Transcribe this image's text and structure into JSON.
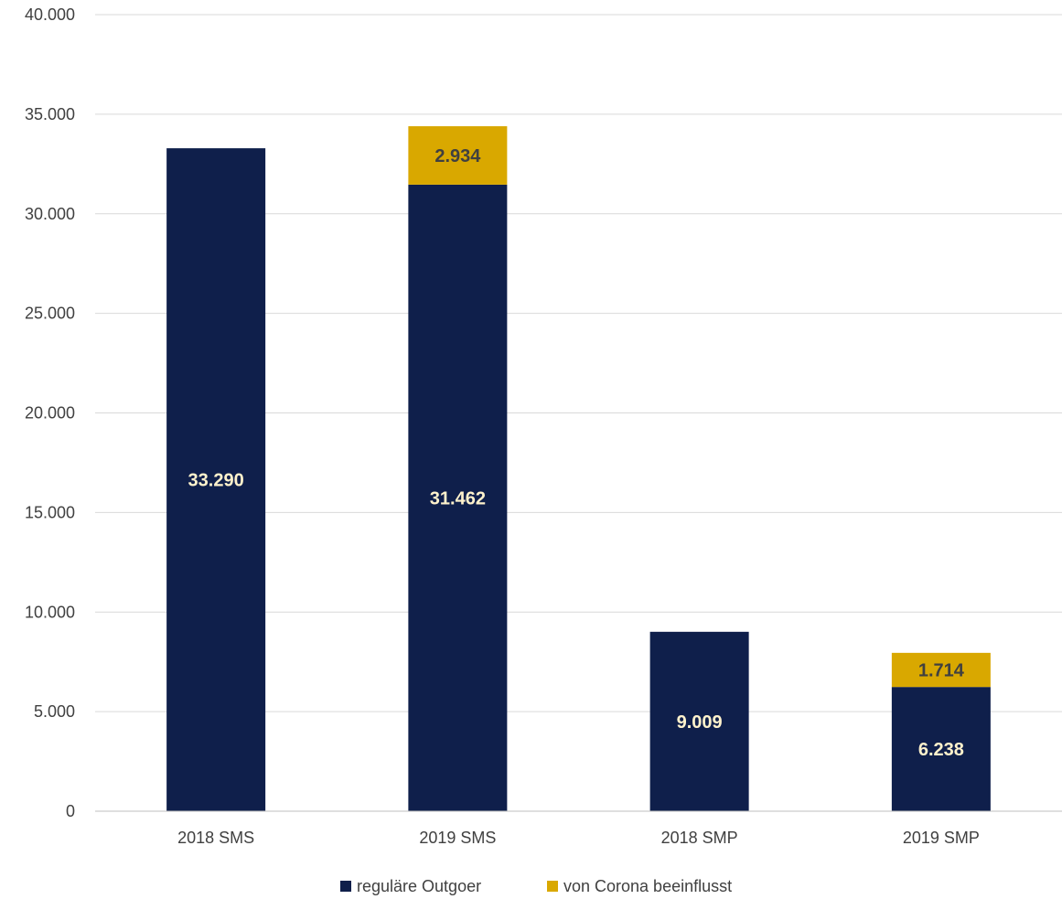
{
  "chart_data": {
    "type": "bar",
    "stacked": true,
    "categories": [
      "2018 SMS",
      "2019 SMS",
      "2018 SMP",
      "2019 SMP"
    ],
    "series": [
      {
        "name": "reguläre Outgoer",
        "color": "#0f1f4b",
        "label_color": "#fff2cc",
        "values": [
          33290,
          31462,
          9009,
          6238
        ],
        "labels": [
          "33.290",
          "31.462",
          "9.009",
          "6.238"
        ]
      },
      {
        "name": "von Corona beeinflusst",
        "color": "#d9a800",
        "label_color": "#404040",
        "values": [
          0,
          2934,
          0,
          1714
        ],
        "labels": [
          "",
          "2.934",
          "",
          "1.714"
        ]
      }
    ],
    "ylim": [
      0,
      40000
    ],
    "yticks": [
      0,
      5000,
      10000,
      15000,
      20000,
      25000,
      30000,
      35000,
      40000
    ],
    "ytick_labels": [
      "0",
      "5.000",
      "10.000",
      "15.000",
      "20.000",
      "25.000",
      "30.000",
      "35.000",
      "40.000"
    ],
    "grid": true,
    "legend_position": "bottom",
    "title": "",
    "xlabel": "",
    "ylabel": ""
  }
}
